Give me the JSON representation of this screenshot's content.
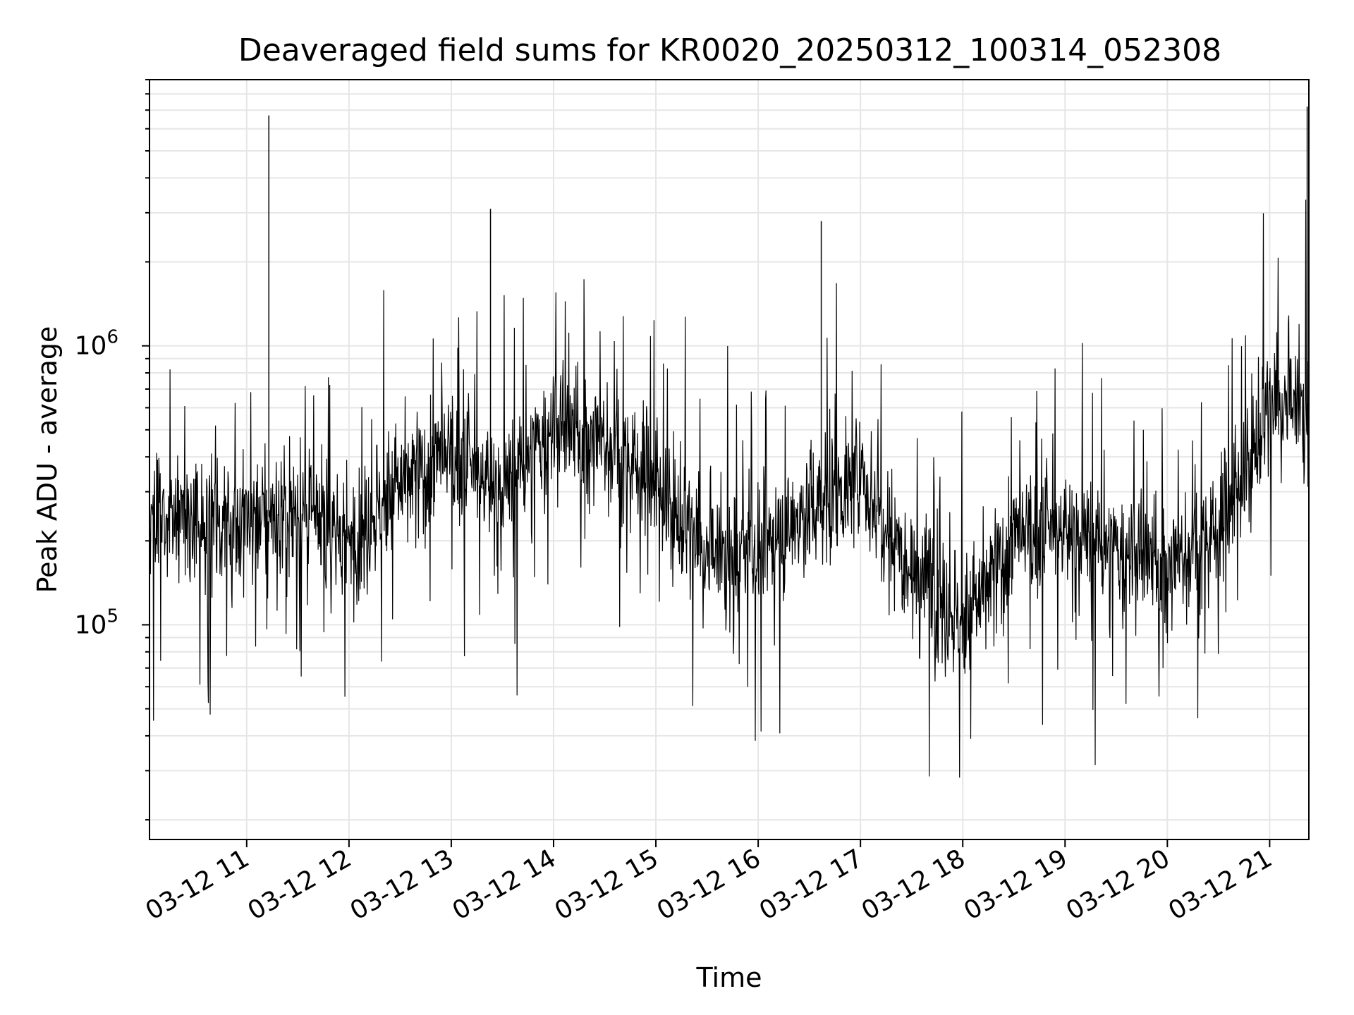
{
  "chart_data": {
    "type": "line",
    "title": "Deaveraged field sums for KR0020_20250312_100314_052308",
    "xlabel": "Time",
    "ylabel": "Peak ADU - average",
    "yscale": "log",
    "ylim": [
      17000,
      9000000
    ],
    "xlim": [
      "03-12 10:03",
      "03-12 21:23"
    ],
    "grid": "on (major and minor)",
    "line_color": "#000000",
    "x_ticks": [
      "03-12 11",
      "03-12 12",
      "03-12 13",
      "03-12 14",
      "03-12 15",
      "03-12 16",
      "03-12 17",
      "03-12 18",
      "03-12 19",
      "03-12 20",
      "03-12 21"
    ],
    "y_ticks": [
      {
        "base": "10",
        "exp": "5",
        "value": 100000
      },
      {
        "base": "10",
        "exp": "6",
        "value": 1000000
      }
    ],
    "series": [
      {
        "x": [
          "03-12 10:03",
          "03-12 10:30",
          "03-12 11:00",
          "03-12 11:30",
          "03-12 12:00",
          "03-12 12:30",
          "03-12 13:00",
          "03-12 13:30",
          "03-12 14:00",
          "03-12 14:30",
          "03-12 15:00",
          "03-12 15:30",
          "03-12 16:00",
          "03-12 16:30",
          "03-12 17:00",
          "03-12 17:30",
          "03-12 18:00",
          "03-12 18:30",
          "03-12 19:00",
          "03-12 19:30",
          "03-12 20:00",
          "03-12 20:30",
          "03-12 21:00",
          "03-12 21:23"
        ],
        "values": [
          270000,
          230000,
          240000,
          250000,
          200000,
          320000,
          400000,
          300000,
          500000,
          450000,
          330000,
          170000,
          180000,
          260000,
          330000,
          170000,
          100000,
          200000,
          220000,
          180000,
          160000,
          220000,
          600000,
          580000
        ]
      }
    ],
    "spikes": [
      {
        "x": "03-12 11:13",
        "value": 6700000
      },
      {
        "x": "03-12 13:23",
        "value": 3100000
      },
      {
        "x": "03-12 16:37",
        "value": 2800000
      },
      {
        "x": "03-12 21:22",
        "value": 7200000
      }
    ]
  }
}
